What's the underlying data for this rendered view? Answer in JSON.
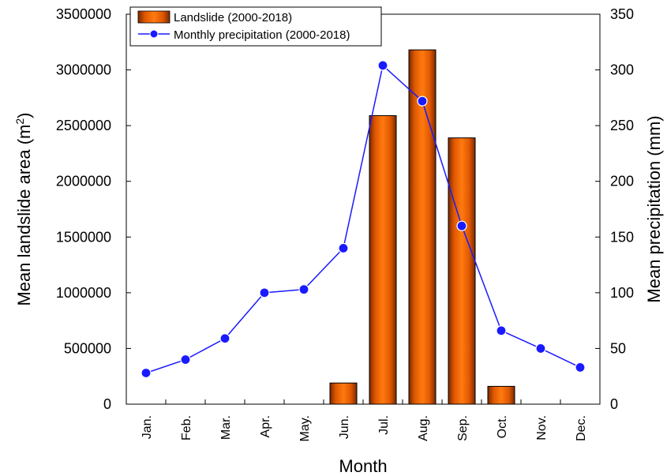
{
  "chart_data": {
    "type": "bar",
    "categories": [
      "Jan.",
      "Feb.",
      "Mar.",
      "Apr.",
      "May.",
      "Jun.",
      "Jul.",
      "Aug.",
      "Sep.",
      "Oct.",
      "Nov.",
      "Dec."
    ],
    "series": [
      {
        "name": "Landslide (2000-2018)",
        "type": "bar",
        "axis": "left",
        "color": "#ff6a00",
        "values": [
          0,
          0,
          0,
          0,
          0,
          190000,
          2590000,
          3180000,
          2390000,
          160000,
          0,
          0
        ]
      },
      {
        "name": "Monthly precipitation (2000-2018)",
        "type": "line",
        "axis": "right",
        "color": "#1a1aff",
        "values": [
          28,
          40,
          59,
          100,
          103,
          140,
          304,
          272,
          160,
          66,
          50,
          33
        ]
      }
    ],
    "xlabel": "Month",
    "ylabel_left": "Mean landslide area (m",
    "ylabel_left_superscript": "2",
    "ylabel_left_close": ")",
    "ylabel_right": "Mean precipitation (mm)",
    "ylim_left": [
      0,
      3500000
    ],
    "ylim_right": [
      0,
      350
    ],
    "yticks_left": [
      "0",
      "500000",
      "1000000",
      "1500000",
      "2000000",
      "2500000",
      "3000000",
      "3500000"
    ],
    "yticks_right": [
      "0",
      "50",
      "100",
      "150",
      "200",
      "250",
      "300",
      "350"
    ],
    "grid": false,
    "legend_position": "top-left"
  }
}
